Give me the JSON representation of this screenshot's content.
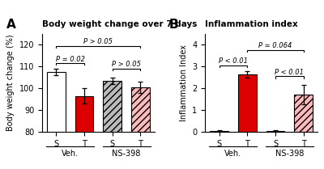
{
  "chart_data": [
    {
      "type": "bar",
      "panel_label": "A",
      "title": "Body weight change over 7 days",
      "ylabel": "Body weight change (%)",
      "categories": [
        "S",
        "T",
        "S",
        "T"
      ],
      "values": [
        107.5,
        96.5,
        103.5,
        100.5
      ],
      "errors": [
        1.5,
        3.5,
        1.5,
        2.5
      ],
      "colors": [
        "#ffffff",
        "#dd0000",
        "#bbbbbb",
        "#ffbbbb"
      ],
      "group_labels": [
        "Veh.",
        "NS-398"
      ],
      "ylim": [
        80,
        125
      ],
      "yticks": [
        80,
        90,
        100,
        110,
        120
      ],
      "annotations": [
        {
          "x1": 0,
          "x2": 1,
          "y": 111.5,
          "label": "P = 0.02"
        },
        {
          "x1": 2,
          "x2": 3,
          "y": 109.0,
          "label": "P > 0.05"
        },
        {
          "x1": 0,
          "x2": 3,
          "y": 119.5,
          "label": "P > 0.05"
        }
      ]
    },
    {
      "type": "bar",
      "panel_label": "B",
      "title": "Inflammation index",
      "ylabel": "Inflammation Index",
      "categories": [
        "S",
        "T",
        "S",
        "T"
      ],
      "values": [
        0.05,
        2.62,
        0.05,
        1.7
      ],
      "errors": [
        0.04,
        0.15,
        0.04,
        0.45
      ],
      "colors": [
        "#ffffff",
        "#dd0000",
        "#bbbbbb",
        "#ffbbbb"
      ],
      "group_labels": [
        "Veh.",
        "NS-398"
      ],
      "ylim": [
        0,
        4.5
      ],
      "yticks": [
        0,
        1,
        2,
        3,
        4
      ],
      "annotations": [
        {
          "x1": 0,
          "x2": 1,
          "y": 3.05,
          "label": "P < 0.01"
        },
        {
          "x1": 2,
          "x2": 3,
          "y": 2.55,
          "label": "P < 0.01"
        },
        {
          "x1": 1,
          "x2": 3,
          "y": 3.75,
          "label": "P = 0.064"
        }
      ]
    }
  ]
}
